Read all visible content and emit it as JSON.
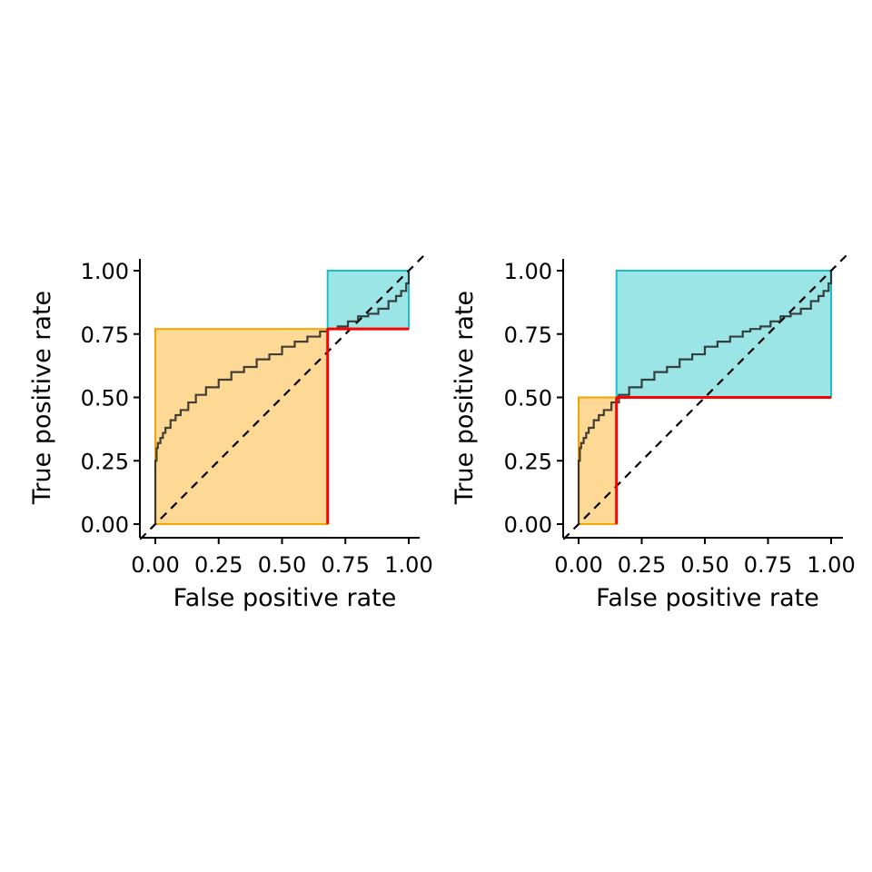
{
  "chart_data": [
    {
      "type": "line",
      "xlabel": "False positive rate",
      "ylabel": "True positive rate",
      "xlim": [
        0,
        1
      ],
      "ylim": [
        0,
        1
      ],
      "x_ticks": [
        "0.00",
        "0.25",
        "0.50",
        "0.75",
        "1.00"
      ],
      "y_ticks": [
        "0.00",
        "0.25",
        "0.50",
        "0.75",
        "1.00"
      ],
      "grid": false,
      "roc_curve": {
        "x": [
          0.0,
          0.0,
          0.005,
          0.01,
          0.02,
          0.03,
          0.04,
          0.06,
          0.08,
          0.1,
          0.13,
          0.16,
          0.2,
          0.25,
          0.3,
          0.35,
          0.4,
          0.45,
          0.5,
          0.55,
          0.6,
          0.65,
          0.68,
          0.72,
          0.76,
          0.8,
          0.84,
          0.88,
          0.92,
          0.95,
          0.97,
          0.99,
          1.0
        ],
        "y": [
          0.0,
          0.25,
          0.3,
          0.32,
          0.34,
          0.36,
          0.38,
          0.41,
          0.43,
          0.45,
          0.48,
          0.51,
          0.54,
          0.57,
          0.6,
          0.62,
          0.65,
          0.67,
          0.7,
          0.72,
          0.74,
          0.76,
          0.77,
          0.78,
          0.8,
          0.82,
          0.83,
          0.85,
          0.88,
          0.9,
          0.92,
          0.95,
          1.0
        ]
      },
      "diagonal": {
        "x": [
          0,
          1
        ],
        "y": [
          0,
          1
        ],
        "style": "dashed"
      },
      "threshold_point": {
        "fpr": 0.68,
        "tpr": 0.77
      },
      "lower_region": {
        "x": [
          0,
          0.68
        ],
        "y": [
          0,
          0.77
        ],
        "fill": "#fdd995",
        "stroke": "#f4a500"
      },
      "upper_region": {
        "x": [
          0.68,
          1.0
        ],
        "y": [
          0.77,
          1.0
        ],
        "fill": "#9be5e6",
        "stroke": "#1dbfc6"
      },
      "threshold_lines_color": "#ff0000"
    },
    {
      "type": "line",
      "xlabel": "False positive rate",
      "ylabel": "True positive rate",
      "xlim": [
        0,
        1
      ],
      "ylim": [
        0,
        1
      ],
      "x_ticks": [
        "0.00",
        "0.25",
        "0.50",
        "0.75",
        "1.00"
      ],
      "y_ticks": [
        "0.00",
        "0.25",
        "0.50",
        "0.75",
        "1.00"
      ],
      "grid": false,
      "roc_curve": {
        "x": [
          0.0,
          0.0,
          0.005,
          0.01,
          0.02,
          0.03,
          0.04,
          0.06,
          0.08,
          0.1,
          0.13,
          0.16,
          0.2,
          0.25,
          0.3,
          0.35,
          0.4,
          0.45,
          0.5,
          0.55,
          0.6,
          0.65,
          0.68,
          0.72,
          0.76,
          0.8,
          0.84,
          0.88,
          0.92,
          0.95,
          0.97,
          0.99,
          1.0
        ],
        "y": [
          0.0,
          0.25,
          0.3,
          0.32,
          0.34,
          0.36,
          0.38,
          0.41,
          0.43,
          0.45,
          0.48,
          0.51,
          0.54,
          0.57,
          0.6,
          0.62,
          0.65,
          0.67,
          0.7,
          0.72,
          0.74,
          0.76,
          0.77,
          0.78,
          0.8,
          0.82,
          0.83,
          0.85,
          0.88,
          0.9,
          0.92,
          0.95,
          1.0
        ]
      },
      "diagonal": {
        "x": [
          0,
          1
        ],
        "y": [
          0,
          1
        ],
        "style": "dashed"
      },
      "threshold_point": {
        "fpr": 0.15,
        "tpr": 0.5
      },
      "lower_region": {
        "x": [
          0,
          0.15
        ],
        "y": [
          0,
          0.5
        ],
        "fill": "#fdd995",
        "stroke": "#f4a500"
      },
      "upper_region": {
        "x": [
          0.15,
          1.0
        ],
        "y": [
          0.5,
          1.0
        ],
        "fill": "#9be5e6",
        "stroke": "#1dbfc6"
      },
      "threshold_lines_color": "#ff0000"
    }
  ]
}
